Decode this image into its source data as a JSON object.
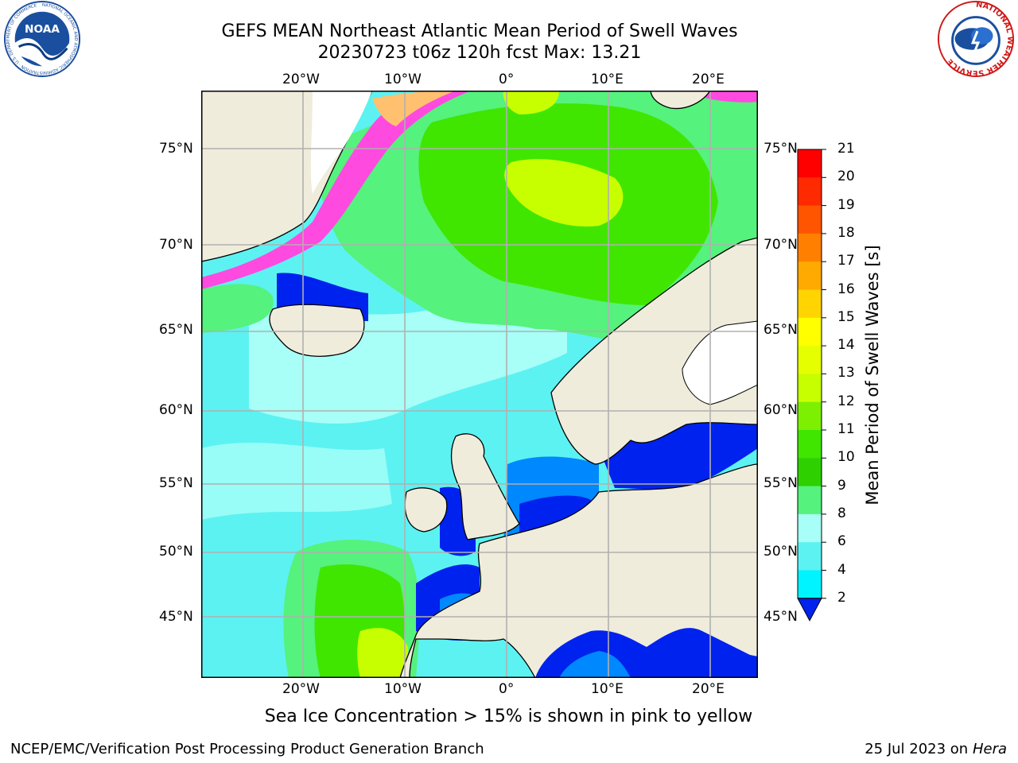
{
  "title": {
    "line1": "GEFS MEAN Northeast Atlantic Mean Period of Swell Waves",
    "line2": "20230723 t06z 120h fcst   Max: 13.21"
  },
  "logos": {
    "noaa": {
      "text": "NOAA",
      "ring_text": "NATIONAL OCEANIC AND ATMOSPHERIC ADMINISTRATION · U.S. DEPARTMENT OF COMMERCE",
      "icon": "noaa-logo-icon"
    },
    "nws": {
      "ring_text": "NATIONAL WEATHER SERVICE",
      "icon": "nws-logo-icon"
    }
  },
  "axes": {
    "lon_labels": [
      "20°W",
      "10°W",
      "0°",
      "10°E",
      "20°E"
    ],
    "lat_labels": [
      "75°N",
      "70°N",
      "65°N",
      "60°N",
      "55°N",
      "50°N",
      "45°N"
    ]
  },
  "colorbar": {
    "label": "Mean Period of Swell Waves [s]",
    "ticks": [
      "21",
      "20",
      "19",
      "18",
      "17",
      "16",
      "15",
      "14",
      "13",
      "12",
      "11",
      "10",
      "9",
      "8",
      "6",
      "4",
      "2"
    ],
    "colors": [
      "#ff0000",
      "#ff2a00",
      "#ff5500",
      "#ff8000",
      "#ffaa00",
      "#ffd400",
      "#ffff00",
      "#e6ff00",
      "#c8ff00",
      "#7cf000",
      "#40e600",
      "#2ed000",
      "#55f27d",
      "#a8fff7",
      "#5cf2f2",
      "#00f4ff",
      "#0088ff",
      "#0022ee"
    ]
  },
  "ice_note": "Sea Ice Concentration > 15% is shown in pink to yellow",
  "footer": {
    "left": "NCEP/EMC/Verification Post Processing Product Generation Branch",
    "date": "25 Jul 2023 on ",
    "host": "Hera"
  }
}
